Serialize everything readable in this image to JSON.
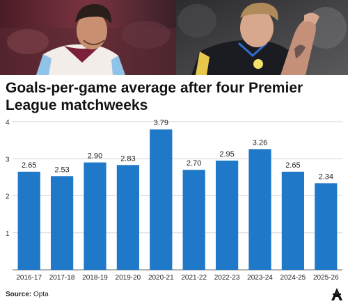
{
  "header": {
    "photo_left": "villa-player-photo",
    "photo_right": "leeds-player-photo"
  },
  "title": "Goals-per-game average after four Premier League matchweeks",
  "source": {
    "label": "Source:",
    "value": "Opta"
  },
  "logo_icon": "athletic-logo-icon",
  "colors": {
    "bar": "#1f78c8",
    "grid": "#d6d6d6",
    "axis": "#6b6b6b"
  },
  "chart_data": {
    "type": "bar",
    "title": "Goals-per-game average after four Premier League matchweeks",
    "categories": [
      "2016-17",
      "2017-18",
      "2018-19",
      "2019-20",
      "2020-21",
      "2021-22",
      "2022-23",
      "2023-24",
      "2024-25",
      "2025-26"
    ],
    "values": [
      2.65,
      2.53,
      2.9,
      2.83,
      3.79,
      2.7,
      2.95,
      3.26,
      2.65,
      2.34
    ],
    "value_labels": [
      "2.65",
      "2.53",
      "2.90",
      "2.83",
      "3.79",
      "2.70",
      "2.95",
      "3.26",
      "2.65",
      "2.34"
    ],
    "yticks": [
      "1",
      "2",
      "3",
      "4"
    ],
    "ylim": [
      0,
      4
    ],
    "grid": true,
    "legend": "none",
    "xlabel": "",
    "ylabel": ""
  }
}
